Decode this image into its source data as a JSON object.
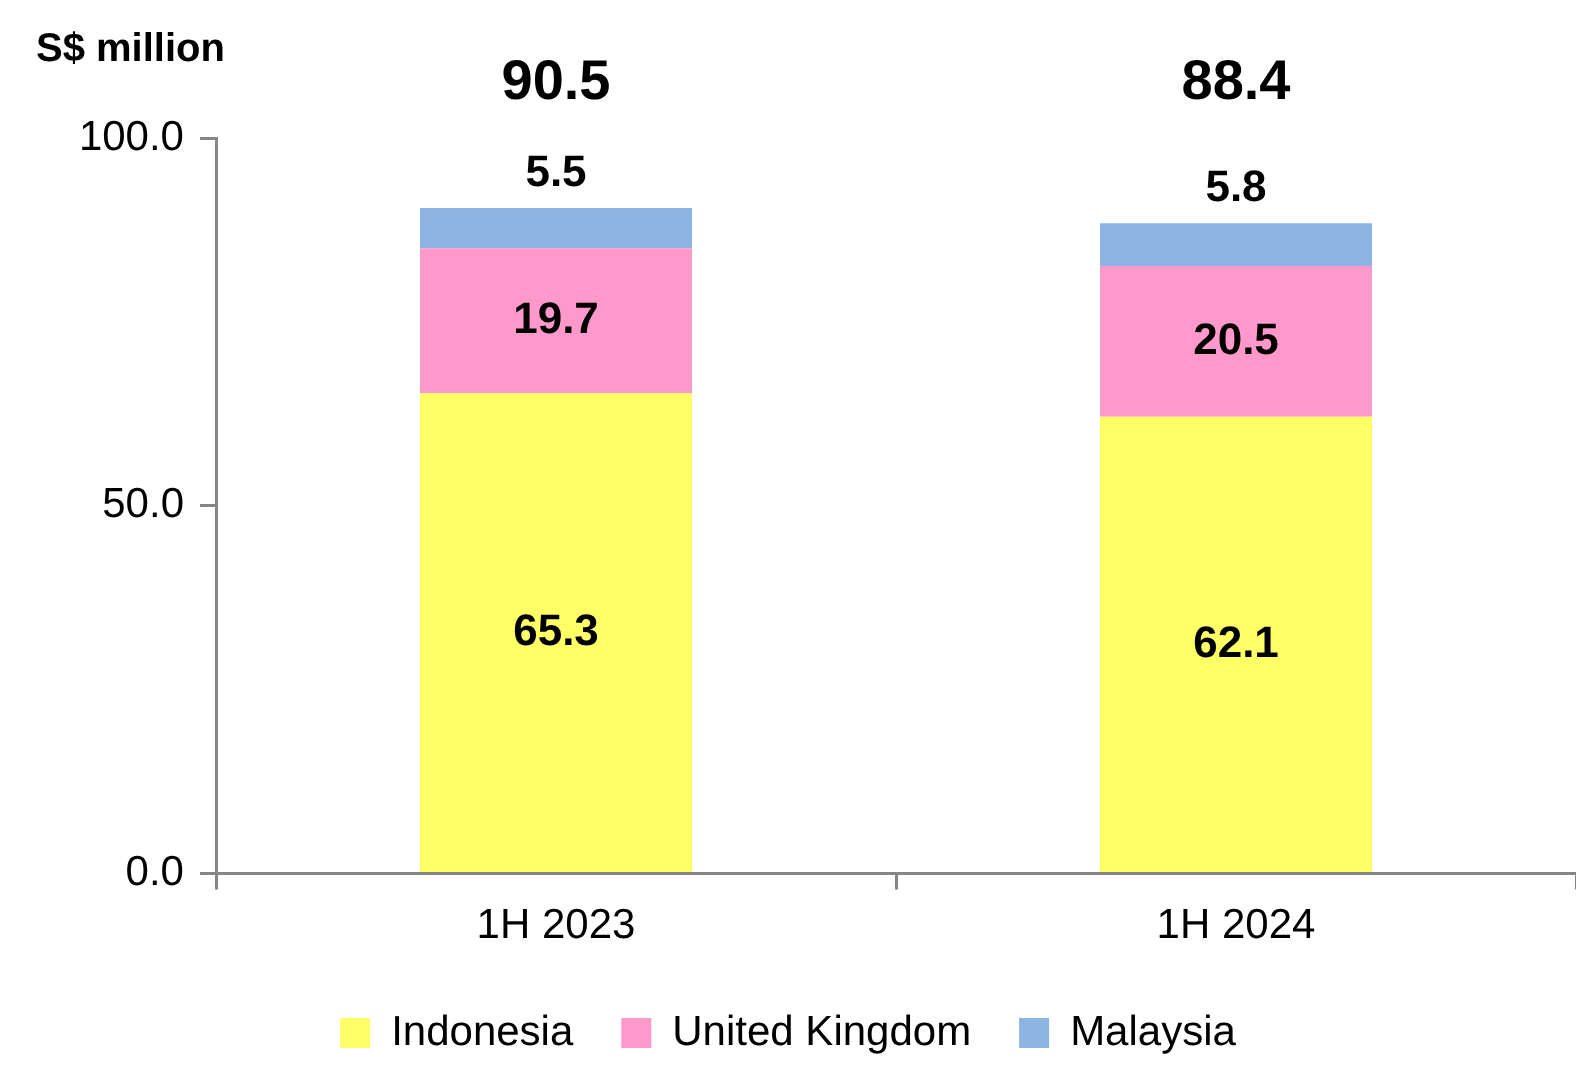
{
  "chart_data": {
    "type": "bar",
    "stacked": true,
    "ylabel": "S$ million",
    "categories": [
      "1H 2023",
      "1H 2024"
    ],
    "series": [
      {
        "name": "Indonesia",
        "color": "#ffff66",
        "values": [
          65.3,
          62.1
        ]
      },
      {
        "name": "United Kingdom",
        "color": "#ff99cc",
        "values": [
          19.7,
          20.5
        ]
      },
      {
        "name": "Malaysia",
        "color": "#8eb4e3",
        "values": [
          5.5,
          5.8
        ]
      }
    ],
    "ylim": [
      0,
      100
    ],
    "yticks": [
      {
        "value": 0,
        "label": "0.0"
      },
      {
        "value": 50,
        "label": "50.0"
      },
      {
        "value": 100,
        "label": "100.0"
      }
    ],
    "data_labels": true,
    "totals": [
      "90.5",
      "88.4"
    ],
    "legend": "bottom",
    "grid": false
  }
}
